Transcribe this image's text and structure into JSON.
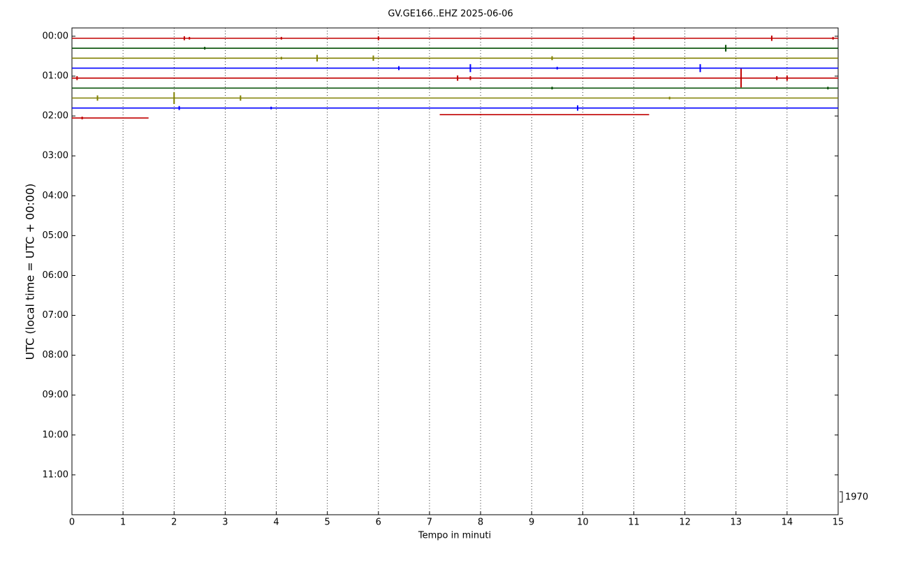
{
  "chart_data": {
    "type": "dayplot",
    "title": "GV.GE166..EHZ 2025-06-06",
    "xlabel": "Tempo in minuti",
    "ylabel": "UTC (local time = UTC + 00:00)",
    "xlim": [
      0,
      15
    ],
    "xticks": [
      0,
      1,
      2,
      3,
      4,
      5,
      6,
      7,
      8,
      9,
      10,
      11,
      12,
      13,
      14,
      15
    ],
    "ylim": [
      720,
      -12.5
    ],
    "yticks": [
      {
        "value": 0,
        "label": "00:00"
      },
      {
        "value": 60,
        "label": "01:00"
      },
      {
        "value": 120,
        "label": "02:00"
      },
      {
        "value": 180,
        "label": "03:00"
      },
      {
        "value": 240,
        "label": "04:00"
      },
      {
        "value": 300,
        "label": "05:00"
      },
      {
        "value": 360,
        "label": "06:00"
      },
      {
        "value": 420,
        "label": "07:00"
      },
      {
        "value": 480,
        "label": "08:00"
      },
      {
        "value": 540,
        "label": "09:00"
      },
      {
        "value": 600,
        "label": "10:00"
      },
      {
        "value": 660,
        "label": "11:00"
      }
    ],
    "grid": true,
    "scale_label": "1970",
    "traces": [
      {
        "color": "#c00000",
        "y": 3,
        "x": [
          0,
          15
        ],
        "spike_x": [
          2.2,
          2.3,
          4.1,
          6.0,
          11.0,
          13.7,
          14.9
        ],
        "spike_amp": [
          3,
          2,
          2,
          3,
          3,
          4,
          2
        ]
      },
      {
        "color": "#004d00",
        "y": 18,
        "x": [
          0,
          15
        ],
        "spike_x": [
          2.6,
          12.8
        ],
        "spike_amp": [
          2,
          5
        ]
      },
      {
        "color": "#808000",
        "y": 33,
        "x": [
          0,
          15
        ],
        "spike_x": [
          4.1,
          4.8,
          5.9,
          9.4
        ],
        "spike_amp": [
          2,
          5,
          4,
          3
        ]
      },
      {
        "color": "#0000ff",
        "y": 48,
        "x": [
          0,
          15
        ],
        "spike_x": [
          6.4,
          7.8,
          9.5,
          12.3
        ],
        "spike_amp": [
          3,
          6,
          2,
          6
        ]
      },
      {
        "color": "#c00000",
        "y": 63,
        "x": [
          0,
          15
        ],
        "spike_x": [
          0.1,
          7.55,
          7.8,
          13.1,
          13.8,
          14.0
        ],
        "spike_amp": [
          3,
          4,
          3,
          14,
          3,
          4
        ]
      },
      {
        "color": "#004d00",
        "y": 78,
        "x": [
          0,
          15
        ],
        "spike_x": [
          9.4,
          14.8
        ],
        "spike_amp": [
          2,
          2
        ]
      },
      {
        "color": "#808000",
        "y": 93,
        "x": [
          0,
          15
        ],
        "spike_x": [
          0.5,
          2.0,
          3.3,
          11.7
        ],
        "spike_amp": [
          4,
          9,
          4,
          2
        ]
      },
      {
        "color": "#0000ff",
        "y": 108,
        "x": [
          0,
          15
        ],
        "spike_x": [
          2.1,
          3.9,
          9.9
        ],
        "spike_amp": [
          3,
          2,
          4
        ]
      },
      {
        "color": "#c00000",
        "y": 118,
        "x": [
          7.2,
          11.3
        ],
        "spike_x": [
          8.0
        ],
        "spike_amp": [
          1
        ]
      },
      {
        "color": "#c00000",
        "y": 123,
        "x": [
          0,
          1.5
        ],
        "spike_x": [
          0.2
        ],
        "spike_amp": [
          2
        ]
      }
    ]
  }
}
